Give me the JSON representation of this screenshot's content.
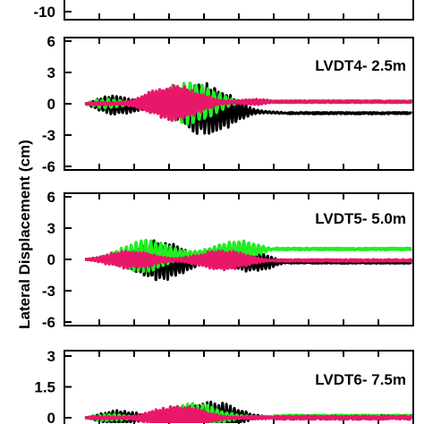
{
  "chart_data": {
    "type": "line",
    "ylabel": "Lateral Displacement (cm)",
    "colors": {
      "black_series": "#000000",
      "green_series": "#22ee22",
      "pink_series": "#e8176a"
    },
    "panels": [
      {
        "id": "top",
        "label": "",
        "ylim": [
          -10,
          10
        ],
        "yticks": [
          {
            "value": -10,
            "label": "-10"
          }
        ],
        "series": []
      },
      {
        "id": "lvdt4",
        "label": "LVDT4- 2.5m",
        "ylim": [
          -6,
          6
        ],
        "yticks": [
          {
            "value": 6,
            "label": "6"
          },
          {
            "value": 3,
            "label": "3"
          },
          {
            "value": 0,
            "label": "0"
          },
          {
            "value": -3,
            "label": "-3"
          },
          {
            "value": -6,
            "label": "-6"
          }
        ],
        "series": [
          {
            "color": "#000000",
            "start": 0.0,
            "end": 0.62,
            "amp": 2.8,
            "period": 0.012,
            "residual": -0.9,
            "seed": 1
          },
          {
            "color": "#22ee22",
            "start": 0.0,
            "end": 0.55,
            "amp": 2.2,
            "period": 0.018,
            "residual": 0.2,
            "seed": 2
          },
          {
            "color": "#e8176a",
            "start": 0.0,
            "end": 0.58,
            "amp": 1.8,
            "period": 0.011,
            "residual": 0.2,
            "seed": 3
          }
        ]
      },
      {
        "id": "lvdt5",
        "label": "LVDT5- 5.0m",
        "ylim": [
          -6,
          6
        ],
        "yticks": [
          {
            "value": 6,
            "label": "6"
          },
          {
            "value": 3,
            "label": "3"
          },
          {
            "value": 0,
            "label": "0"
          },
          {
            "value": -3,
            "label": "-3"
          },
          {
            "value": -6,
            "label": "-6"
          }
        ],
        "series": [
          {
            "color": "#000000",
            "start": 0.0,
            "end": 0.62,
            "amp": 2.2,
            "period": 0.012,
            "residual": -0.3,
            "seed": 4
          },
          {
            "color": "#22ee22",
            "start": 0.0,
            "end": 0.58,
            "amp": 2.0,
            "period": 0.015,
            "residual": 1.0,
            "seed": 5
          },
          {
            "color": "#e8176a",
            "start": 0.0,
            "end": 0.58,
            "amp": 1.4,
            "period": 0.011,
            "residual": -0.1,
            "seed": 6
          }
        ]
      },
      {
        "id": "lvdt6",
        "label": "LVDT6- 7.5m",
        "ylim": [
          -1.5,
          3
        ],
        "yticks": [
          {
            "value": 3,
            "label": "3"
          },
          {
            "value": 1.5,
            "label": "1.5"
          },
          {
            "value": 0,
            "label": "0"
          }
        ],
        "series": [
          {
            "color": "#000000",
            "start": 0.0,
            "end": 0.62,
            "amp": 0.9,
            "period": 0.012,
            "residual": 0.05,
            "seed": 7
          },
          {
            "color": "#22ee22",
            "start": 0.0,
            "end": 0.58,
            "amp": 0.7,
            "period": 0.015,
            "residual": 0.05,
            "seed": 8
          },
          {
            "color": "#e8176a",
            "start": 0.0,
            "end": 0.58,
            "amp": 0.6,
            "period": 0.011,
            "residual": 0.0,
            "seed": 9
          }
        ]
      }
    ],
    "grid": false
  }
}
